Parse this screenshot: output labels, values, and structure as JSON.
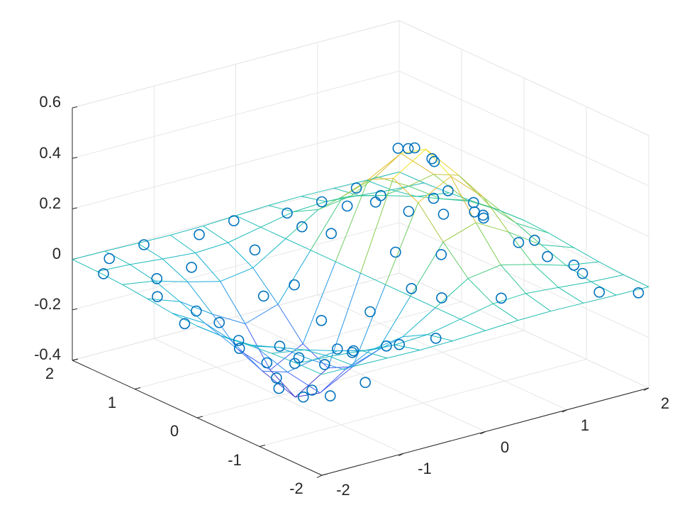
{
  "chart_data": {
    "type": "surface3d",
    "title": "",
    "xlabel": "",
    "ylabel": "",
    "zlabel": "",
    "xlim": [
      -2,
      2
    ],
    "ylim": [
      -2,
      2
    ],
    "zlim": [
      -0.4,
      0.6
    ],
    "x_ticks": [
      "-2",
      "-1",
      "0",
      "1",
      "2"
    ],
    "y_ticks": [
      "-2",
      "-1",
      "0",
      "1",
      "2"
    ],
    "z_ticks": [
      "-0.4",
      "-0.2",
      "0",
      "0.2",
      "0.4",
      "0.6"
    ],
    "grid": true,
    "colormap": "parula",
    "marker_color": "#0072bd",
    "surface_function": "x * exp(-x^2 - y^2)",
    "surface_grid": [
      -2,
      -1.6,
      -1.2,
      -0.8,
      -0.4,
      0,
      0.4,
      0.8,
      1.2,
      1.6,
      2
    ],
    "series": [
      {
        "type": "mesh",
        "x": [
          -2,
          -1.6,
          -1.2,
          -0.8,
          -0.4,
          0,
          0.4,
          0.8,
          1.2,
          1.6,
          2
        ],
        "y": [
          -2,
          -1.6,
          -1.2,
          -0.8,
          -0.4,
          0,
          0.4,
          0.8,
          1.2,
          1.6,
          2
        ]
      },
      {
        "type": "scatter",
        "marker": "circle",
        "points": [
          [
            0.7,
            0.05,
            0.43
          ],
          [
            0.65,
            0.25,
            0.41
          ],
          [
            0.75,
            -0.2,
            0.4
          ],
          [
            0.85,
            0.35,
            0.38
          ],
          [
            0.95,
            0.1,
            0.36
          ],
          [
            0.55,
            -0.45,
            0.3
          ],
          [
            1.0,
            -0.5,
            0.25
          ],
          [
            1.3,
            0.3,
            0.18
          ],
          [
            1.2,
            -0.4,
            0.16
          ],
          [
            1.5,
            0.0,
            0.1
          ],
          [
            1.4,
            -0.7,
            0.08
          ],
          [
            1.7,
            0.4,
            0.05
          ],
          [
            1.6,
            -0.9,
            0.03
          ],
          [
            1.9,
            -0.3,
            0.0
          ],
          [
            1.8,
            -1.2,
            -0.02
          ],
          [
            2.0,
            -0.8,
            -0.05
          ],
          [
            1.7,
            -1.6,
            -0.04
          ],
          [
            1.95,
            -1.9,
            -0.03
          ],
          [
            0.3,
            -0.9,
            0.15
          ],
          [
            0.0,
            -1.3,
            0.05
          ],
          [
            -0.7,
            0.0,
            -0.43
          ],
          [
            -0.6,
            -0.3,
            -0.4
          ],
          [
            -0.8,
            0.3,
            -0.38
          ],
          [
            -0.5,
            0.4,
            -0.36
          ],
          [
            -0.9,
            -0.4,
            -0.34
          ],
          [
            -1.0,
            0.0,
            -0.37
          ],
          [
            -0.4,
            -0.6,
            -0.33
          ],
          [
            -1.1,
            0.5,
            -0.26
          ],
          [
            -1.3,
            -0.2,
            -0.22
          ],
          [
            -0.2,
            0.8,
            -0.12
          ],
          [
            -1.5,
            0.3,
            -0.1
          ],
          [
            -1.6,
            -0.8,
            -0.06
          ],
          [
            -1.8,
            0.9,
            -0.04
          ],
          [
            -2.0,
            1.5,
            0.0
          ],
          [
            -1.7,
            1.8,
            0.0
          ],
          [
            -1.2,
            1.9,
            0.0
          ],
          [
            -0.6,
            1.8,
            0.0
          ],
          [
            -0.1,
            1.9,
            0.0
          ],
          [
            0.4,
            1.7,
            0.01
          ],
          [
            0.9,
            1.8,
            0.0
          ],
          [
            1.4,
            1.9,
            0.0
          ],
          [
            -1.9,
            -1.5,
            0.0
          ],
          [
            -1.4,
            -1.7,
            0.0
          ],
          [
            -0.9,
            -1.8,
            0.0
          ],
          [
            -2.0,
            0.2,
            -0.05
          ],
          [
            -1.95,
            -0.6,
            -0.03
          ],
          [
            -1.5,
            1.3,
            -0.04
          ],
          [
            -1.0,
            1.4,
            -0.05
          ],
          [
            -0.3,
            1.3,
            -0.03
          ],
          [
            0.2,
            1.2,
            0.03
          ],
          [
            -1.2,
            -1.2,
            -0.06
          ],
          [
            -0.6,
            -1.2,
            -0.1
          ],
          [
            0.6,
            1.0,
            0.1
          ],
          [
            1.1,
            1.2,
            0.05
          ],
          [
            -0.3,
            -1.6,
            -0.05
          ],
          [
            0.5,
            -1.6,
            0.04
          ],
          [
            0.1,
            0.6,
            0.08
          ],
          [
            -0.5,
            0.9,
            -0.15
          ],
          [
            -1.05,
            -0.8,
            -0.18
          ],
          [
            -0.15,
            -0.35,
            -0.1
          ],
          [
            0.2,
            -0.3,
            0.1
          ],
          [
            0.4,
            0.2,
            0.25
          ],
          [
            -1.4,
            0.8,
            -0.12
          ],
          [
            -0.85,
            -1.0,
            -0.12
          ],
          [
            1.2,
            0.8,
            0.05
          ],
          [
            1.55,
            0.7,
            0.02
          ],
          [
            -0.25,
            0.3,
            -0.2
          ],
          [
            0.05,
            -0.75,
            0.02
          ]
        ]
      }
    ]
  }
}
